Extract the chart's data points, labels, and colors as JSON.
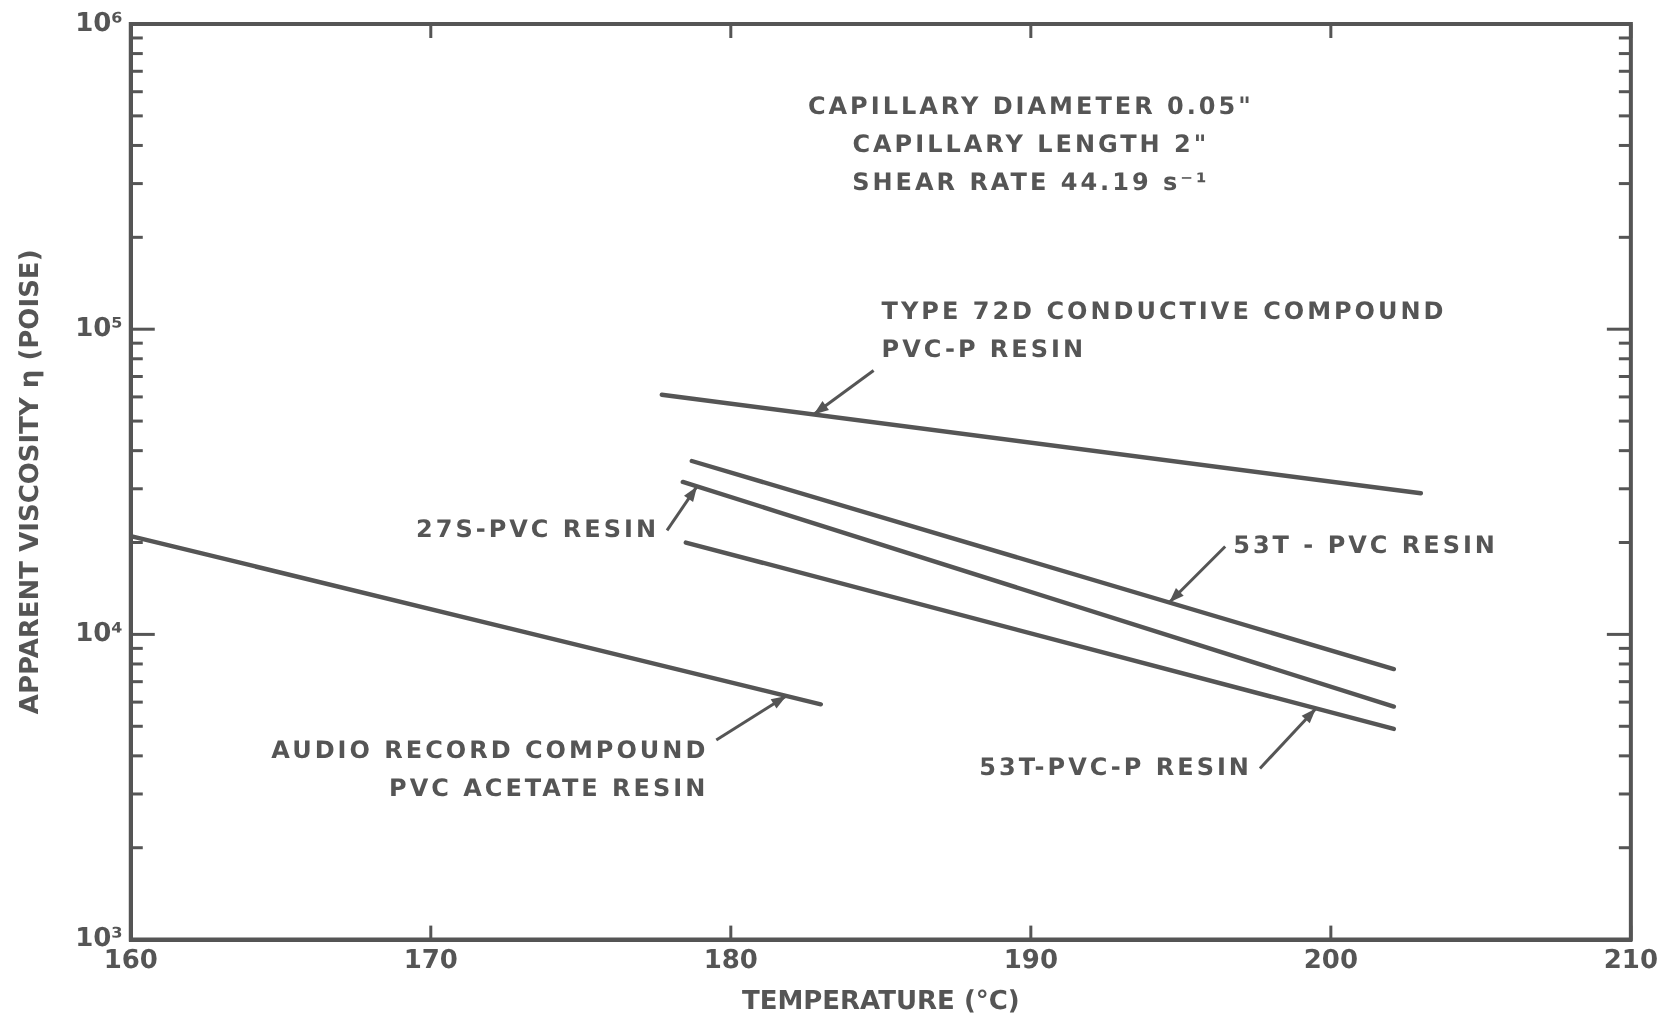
{
  "chart_data": {
    "type": "line",
    "xlabel": "TEMPERATURE (°C)",
    "ylabel": "APPARENT VISCOSITY η (POISE)",
    "xlim": [
      160,
      210
    ],
    "xticks": [
      160,
      170,
      180,
      190,
      200,
      210
    ],
    "ylim": [
      1000,
      1000000
    ],
    "log": "y",
    "yticks": [
      {
        "value": 1000,
        "label": "10³"
      },
      {
        "value": 2000,
        "label": null
      },
      {
        "value": 3000,
        "label": null
      },
      {
        "value": 4000,
        "label": null
      },
      {
        "value": 5000,
        "label": null
      },
      {
        "value": 6000,
        "label": null
      },
      {
        "value": 7000,
        "label": null
      },
      {
        "value": 8000,
        "label": null
      },
      {
        "value": 9000,
        "label": null
      },
      {
        "value": 10000,
        "label": "10⁴"
      },
      {
        "value": 20000,
        "label": null
      },
      {
        "value": 30000,
        "label": null
      },
      {
        "value": 40000,
        "label": null
      },
      {
        "value": 50000,
        "label": null
      },
      {
        "value": 60000,
        "label": null
      },
      {
        "value": 70000,
        "label": null
      },
      {
        "value": 80000,
        "label": null
      },
      {
        "value": 90000,
        "label": null
      },
      {
        "value": 100000,
        "label": "10⁵"
      },
      {
        "value": 200000,
        "label": null
      },
      {
        "value": 300000,
        "label": null
      },
      {
        "value": 400000,
        "label": null
      },
      {
        "value": 500000,
        "label": null
      },
      {
        "value": 600000,
        "label": null
      },
      {
        "value": 700000,
        "label": null
      },
      {
        "value": 800000,
        "label": null
      },
      {
        "value": 900000,
        "label": null
      },
      {
        "value": 1000000,
        "label": "10⁶"
      }
    ],
    "grid": false,
    "legend": false,
    "marker": "none",
    "line_style": "solid",
    "series": [
      {
        "name": "AUDIO RECORD COMPOUND PVC ACETATE RESIN",
        "color": "#555555",
        "x": [
          160,
          183
        ],
        "values": [
          21000,
          5900
        ]
      },
      {
        "name": "TYPE 72D CONDUCTIVE COMPOUND PVC-P RESIN",
        "color": "#555555",
        "x": [
          177.7,
          203
        ],
        "values": [
          61000,
          29000
        ]
      },
      {
        "name": "53T - PVC RESIN",
        "color": "#555555",
        "x": [
          178.7,
          202.1
        ],
        "values": [
          37000,
          7700
        ]
      },
      {
        "name": "27S-PVC RESIN",
        "color": "#555555",
        "x": [
          178.4,
          202.1
        ],
        "values": [
          31600,
          5800
        ]
      },
      {
        "name": "53T-PVC-P RESIN",
        "color": "#555555",
        "x": [
          178.5,
          202.1
        ],
        "values": [
          20000,
          4900
        ]
      }
    ],
    "annotations": [
      "CAPILLARY DIAMETER 0.05\"",
      "CAPILLARY LENGTH 2\"",
      "SHEAR RATE 44.19 s⁻¹"
    ]
  }
}
